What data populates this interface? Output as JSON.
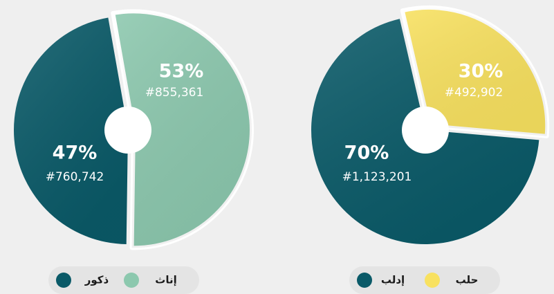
{
  "chart_data": [
    {
      "type": "pie",
      "categories": [
        "ذكور",
        "إناث"
      ],
      "values": [
        47,
        53
      ],
      "value_labels": [
        "47%",
        "53%"
      ],
      "counts": [
        760742,
        855361
      ],
      "count_labels": [
        "#760,742",
        "#855,361"
      ],
      "colors": [
        "#0a5a68",
        "#8cc8ae"
      ]
    },
    {
      "type": "pie",
      "categories": [
        "إدلب",
        "حلب"
      ],
      "values": [
        70,
        30
      ],
      "value_labels": [
        "70%",
        "30%"
      ],
      "counts": [
        1123201,
        492902
      ],
      "count_labels": [
        "#1,123,201",
        "#492,902"
      ],
      "colors": [
        "#0a5a68",
        "#f8e160"
      ]
    }
  ]
}
